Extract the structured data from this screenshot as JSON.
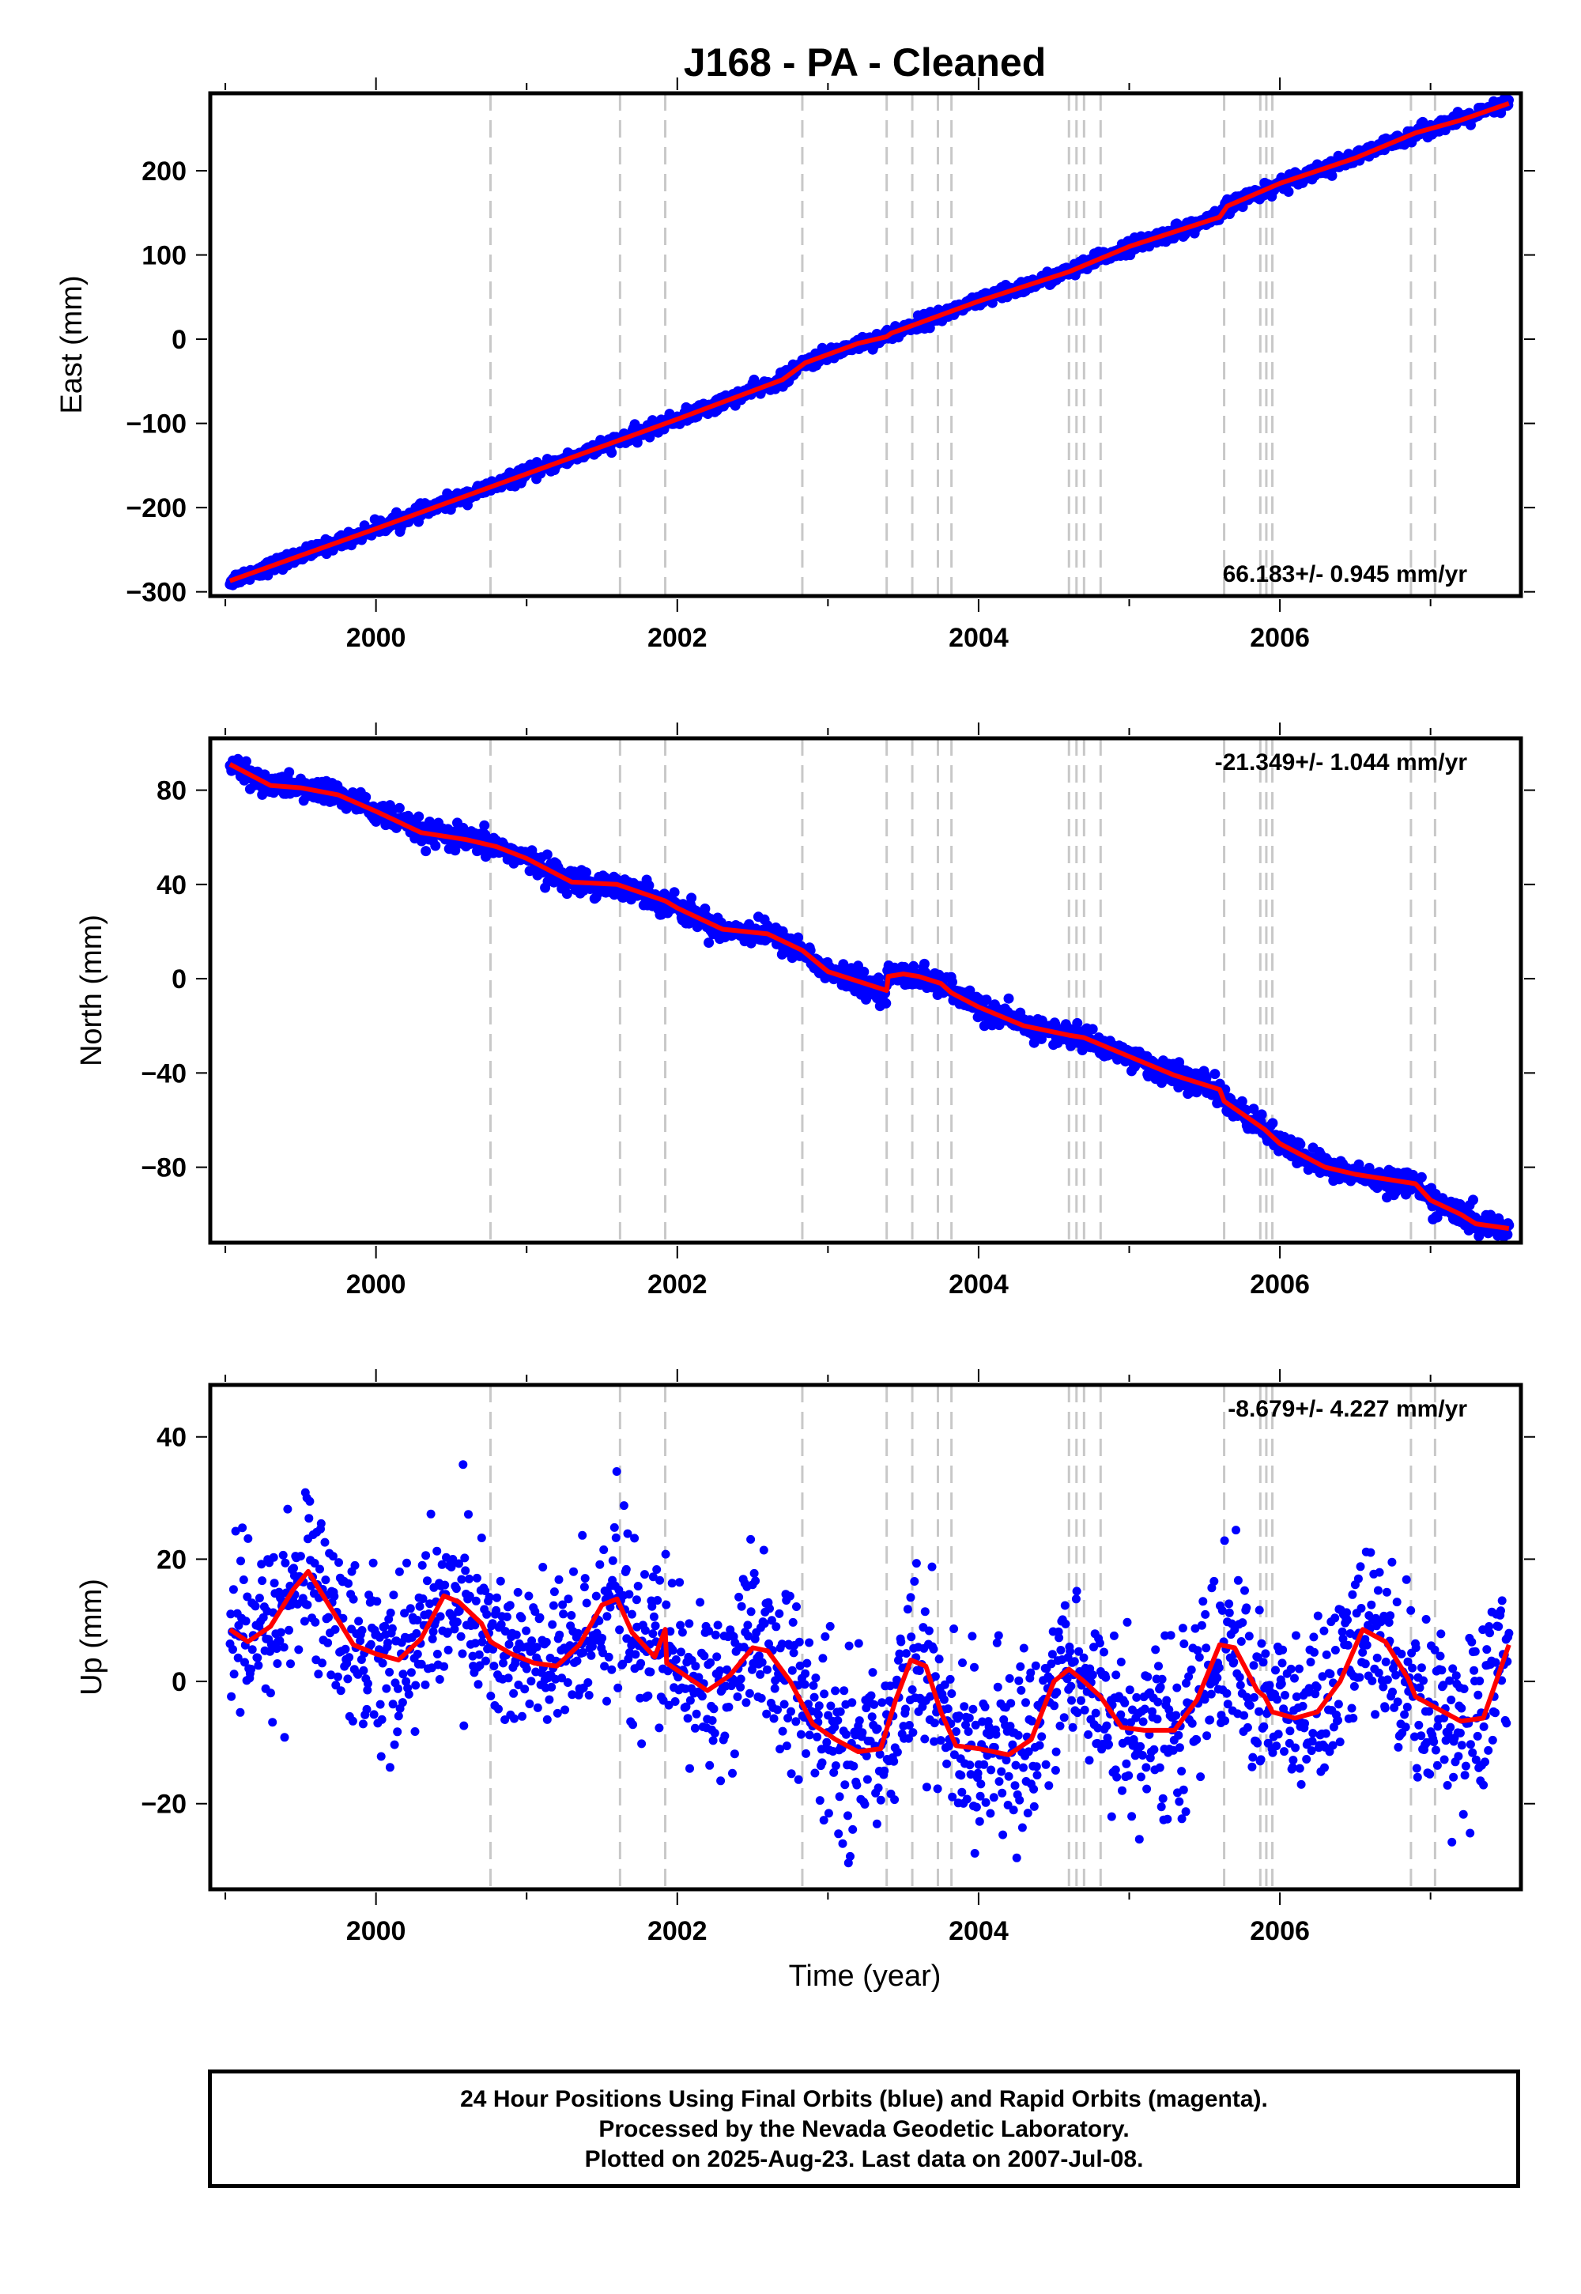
{
  "title": "J168  - PA - Cleaned",
  "colors": {
    "final": "#0000ff",
    "model": "#ff0000",
    "breaks": "#c8c8c8",
    "axes": "#000000"
  },
  "breaks": [
    2000.76,
    2001.62,
    2001.92,
    2002.83,
    2003.39,
    2003.56,
    2003.73,
    2003.82,
    2004.6,
    2004.65,
    2004.7,
    2004.81,
    2005.63,
    2005.87,
    2005.91,
    2005.95,
    2006.87,
    2007.03
  ],
  "x_tick_labels": [
    "2000",
    "2002",
    "2004",
    "2006"
  ],
  "xlabel": "Time (year)",
  "caption": {
    "line1": "24 Hour Positions Using Final Orbits (blue) and Rapid Orbits (magenta).",
    "line2": "Processed by the Nevada Geodetic Laboratory.",
    "line3": "Plotted on 2025-Aug-23. Last data on 2007-Jul-08."
  },
  "chart_data": [
    {
      "type": "scatter",
      "ylabel": "East (mm)",
      "rate": "66.183+/- 0.945 mm/yr",
      "rate_position": "bottom-right",
      "xlim": [
        1998.9,
        2007.6
      ],
      "ylim": [
        -305,
        292
      ],
      "y_ticks": [
        -300,
        -200,
        -100,
        0,
        100,
        200
      ],
      "y_tick_labels": [
        "−300",
        "−200",
        "−100",
        "0",
        "100",
        "200"
      ],
      "model_x": [
        1999.03,
        2000.0,
        2001.0,
        2002.0,
        2002.7,
        2002.85,
        2003.2,
        2003.39,
        2003.42,
        2004.0,
        2004.6,
        2005.0,
        2005.6,
        2005.65,
        2006.0,
        2006.5,
        2006.9,
        2007.2,
        2007.52
      ],
      "model_y": [
        -287,
        -225,
        -160,
        -95,
        -48,
        -28,
        -5,
        3,
        7,
        45,
        80,
        110,
        145,
        158,
        185,
        215,
        245,
        260,
        280
      ],
      "scatter_sigma": 4
    },
    {
      "type": "scatter",
      "ylabel": "North (mm)",
      "rate": "-21.349+/- 1.044 mm/yr",
      "rate_position": "top-right",
      "xlim": [
        1998.9,
        2007.6
      ],
      "ylim": [
        -112,
        102
      ],
      "y_ticks": [
        -80,
        -40,
        0,
        40,
        80
      ],
      "y_tick_labels": [
        "−80",
        "−40",
        "0",
        "40",
        "80"
      ],
      "model_x": [
        1999.03,
        1999.3,
        1999.5,
        1999.75,
        2000.0,
        2000.3,
        2000.6,
        2000.8,
        2001.0,
        2001.3,
        2001.6,
        2001.92,
        2002.0,
        2002.3,
        2002.6,
        2002.83,
        2003.0,
        2003.39,
        2003.4,
        2003.5,
        2003.6,
        2003.75,
        2003.82,
        2004.0,
        2004.3,
        2004.6,
        2004.7,
        2005.0,
        2005.3,
        2005.6,
        2005.63,
        2005.9,
        2006.0,
        2006.3,
        2006.5,
        2006.9,
        2007.0,
        2007.2,
        2007.3,
        2007.52
      ],
      "model_y": [
        91,
        82,
        81,
        78,
        71,
        62,
        59,
        56,
        51,
        41,
        40,
        33,
        30,
        21,
        19,
        12,
        3,
        -5,
        1,
        2,
        1,
        -2,
        -6,
        -12,
        -20,
        -24,
        -25,
        -33,
        -41,
        -47,
        -52,
        -64,
        -70,
        -80,
        -83,
        -87,
        -94,
        -100,
        -104,
        -106
      ],
      "scatter_sigma": 2.5
    },
    {
      "type": "scatter",
      "ylabel": "Up (mm)",
      "rate": "-8.679+/- 4.227 mm/yr",
      "rate_position": "top-right",
      "xlim": [
        1998.9,
        2007.6
      ],
      "ylim": [
        -34,
        48.5
      ],
      "y_ticks": [
        -20,
        0,
        20,
        40
      ],
      "y_tick_labels": [
        "−20",
        "0",
        "20",
        "40"
      ],
      "model_x": [
        1999.03,
        1999.15,
        1999.3,
        1999.45,
        1999.55,
        1999.7,
        1999.85,
        2000.0,
        2000.15,
        2000.3,
        2000.45,
        2000.55,
        2000.7,
        2000.76,
        2000.9,
        2001.05,
        2001.2,
        2001.35,
        2001.5,
        2001.6,
        2001.7,
        2001.85,
        2001.92,
        2001.93,
        2002.05,
        2002.2,
        2002.35,
        2002.5,
        2002.6,
        2002.75,
        2002.9,
        2003.05,
        2003.2,
        2003.35,
        2003.45,
        2003.55,
        2003.65,
        2003.75,
        2003.85,
        2004.0,
        2004.2,
        2004.35,
        2004.5,
        2004.6,
        2004.7,
        2004.81,
        2004.95,
        2005.1,
        2005.3,
        2005.45,
        2005.6,
        2005.7,
        2005.85,
        2005.9,
        2005.95,
        2006.1,
        2006.25,
        2006.4,
        2006.55,
        2006.7,
        2006.85,
        2006.9,
        2007.05,
        2007.2,
        2007.35,
        2007.52
      ],
      "model_y": [
        8.5,
        6.5,
        9,
        15,
        18,
        12,
        6,
        4.5,
        3.5,
        7,
        14,
        13,
        9.5,
        6.5,
        4.5,
        3,
        2.5,
        6,
        12.5,
        13.5,
        8,
        4,
        8.5,
        3,
        1,
        -1.5,
        1,
        5.5,
        5,
        0,
        -7,
        -9.5,
        -11.5,
        -11,
        -3,
        3.5,
        2.5,
        -5,
        -10.5,
        -11,
        -12,
        -9.5,
        0,
        2,
        0,
        -2.5,
        -7.5,
        -8,
        -8,
        -3,
        6,
        5.5,
        -1.5,
        -2.5,
        -5,
        -6,
        -5,
        0,
        8.5,
        6.5,
        0.5,
        -2.5,
        -4.5,
        -6.5,
        -6,
        6
      ],
      "scatter_sigma": 7
    }
  ]
}
